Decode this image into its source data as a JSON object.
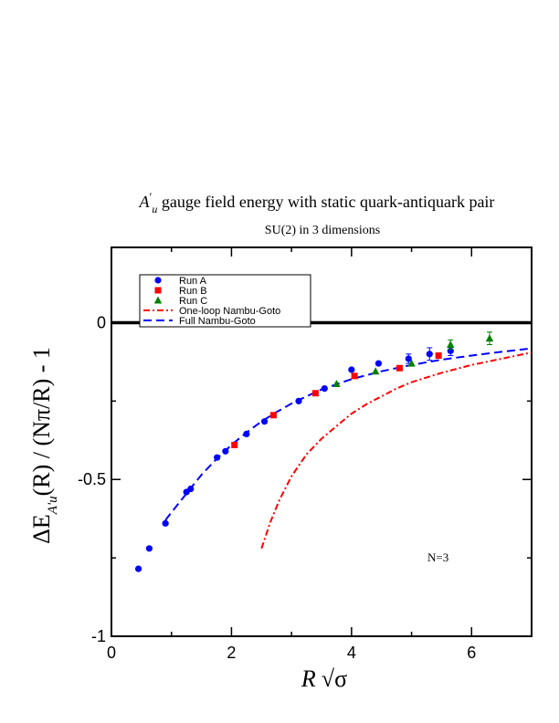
{
  "chart_data": {
    "type": "scatter",
    "title_prefix": "A",
    "title_sub": "u",
    "title_rest": " gauge field energy with static quark-antiquark pair",
    "subtitle": "SU(2) in 3 dimensions",
    "xlabel_main": "R",
    "xlabel_sqrt": "√σ",
    "ylabel_pre": "ΔE",
    "ylabel_sub": "A'u",
    "ylabel_post": "(R) / (Nπ/R) - 1",
    "annotation": "N=3",
    "xlim": [
      0,
      7
    ],
    "ylim": [
      -1,
      0.24
    ],
    "x_ticks": [
      "0",
      "2",
      "4",
      "6"
    ],
    "y_ticks": [
      "0",
      "-0.5",
      "-1"
    ],
    "reference_line": 0,
    "legend": {
      "placement": "top-left",
      "entries": [
        "Run A",
        "Run B",
        "Run C",
        "One-loop Nambu-Goto",
        "Full Nambu-Goto"
      ]
    },
    "series": [
      {
        "name": "Run A",
        "marker": "circle",
        "color": "#0000ff",
        "points": [
          {
            "x": 0.45,
            "y": -0.785,
            "err": 0
          },
          {
            "x": 0.63,
            "y": -0.72,
            "err": 0
          },
          {
            "x": 0.9,
            "y": -0.64,
            "err": 0
          },
          {
            "x": 1.25,
            "y": -0.54,
            "err": 0
          },
          {
            "x": 1.32,
            "y": -0.53,
            "err": 0
          },
          {
            "x": 1.76,
            "y": -0.43,
            "err": 0
          },
          {
            "x": 1.9,
            "y": -0.41,
            "err": 0
          },
          {
            "x": 2.25,
            "y": -0.355,
            "err": 0
          },
          {
            "x": 2.55,
            "y": -0.315,
            "err": 0
          },
          {
            "x": 3.12,
            "y": -0.25,
            "err": 0
          },
          {
            "x": 3.55,
            "y": -0.21,
            "err": 0
          },
          {
            "x": 4.0,
            "y": -0.15,
            "err": 0
          },
          {
            "x": 4.45,
            "y": -0.13,
            "err": 0
          },
          {
            "x": 4.95,
            "y": -0.115,
            "err": 0.015
          },
          {
            "x": 5.3,
            "y": -0.1,
            "err": 0.02
          },
          {
            "x": 5.65,
            "y": -0.09,
            "err": 0.015
          }
        ]
      },
      {
        "name": "Run B",
        "marker": "square",
        "color": "#ff0000",
        "points": [
          {
            "x": 2.05,
            "y": -0.39,
            "err": 0
          },
          {
            "x": 2.7,
            "y": -0.295,
            "err": 0
          },
          {
            "x": 3.4,
            "y": -0.225,
            "err": 0
          },
          {
            "x": 4.05,
            "y": -0.17,
            "err": 0
          },
          {
            "x": 4.8,
            "y": -0.145,
            "err": 0
          },
          {
            "x": 5.45,
            "y": -0.105,
            "err": 0
          }
        ]
      },
      {
        "name": "Run C",
        "marker": "triangle",
        "color": "#008000",
        "points": [
          {
            "x": 3.75,
            "y": -0.195,
            "err": 0
          },
          {
            "x": 4.4,
            "y": -0.155,
            "err": 0
          },
          {
            "x": 5.0,
            "y": -0.13,
            "err": 0
          },
          {
            "x": 5.65,
            "y": -0.07,
            "err": 0.015
          },
          {
            "x": 6.3,
            "y": -0.05,
            "err": 0.02
          }
        ]
      },
      {
        "name": "One-loop Nambu-Goto",
        "line": "dash-dot",
        "color": "#ff0000",
        "x": [
          2.5,
          2.65,
          2.8,
          3.0,
          3.25,
          3.5,
          3.75,
          4.0,
          4.25,
          4.5,
          4.75,
          5.0,
          5.5,
          6.0,
          6.5,
          7.0
        ],
        "y": [
          -0.72,
          -0.635,
          -0.565,
          -0.49,
          -0.42,
          -0.37,
          -0.33,
          -0.29,
          -0.26,
          -0.235,
          -0.21,
          -0.19,
          -0.16,
          -0.135,
          -0.115,
          -0.095
        ]
      },
      {
        "name": "Full Nambu-Goto",
        "line": "dashed",
        "color": "#0000ff",
        "x": [
          0.9,
          1.0,
          1.25,
          1.5,
          1.75,
          2.0,
          2.25,
          2.5,
          2.75,
          3.0,
          3.25,
          3.5,
          4.0,
          4.5,
          5.0,
          5.5,
          6.0,
          6.5,
          7.0
        ],
        "y": [
          -0.63,
          -0.605,
          -0.545,
          -0.485,
          -0.435,
          -0.39,
          -0.35,
          -0.315,
          -0.285,
          -0.258,
          -0.235,
          -0.213,
          -0.18,
          -0.155,
          -0.135,
          -0.118,
          -0.105,
          -0.093,
          -0.082
        ]
      }
    ]
  }
}
